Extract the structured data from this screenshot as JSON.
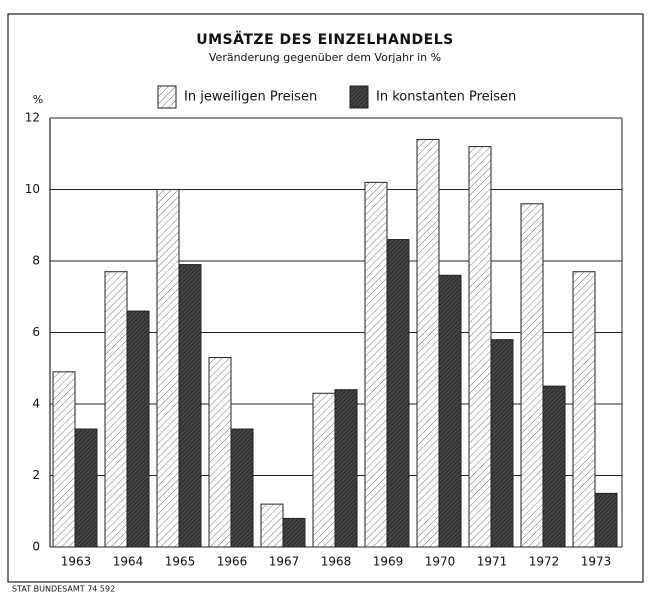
{
  "chart_data": {
    "type": "bar",
    "title": "UMSÄTZE DES EINZELHANDELS",
    "subtitle": "Veränderung gegenüber dem Vorjahr in %",
    "y_label": "%",
    "source": "STAT BUNDESAMT 74 592",
    "categories": [
      "1963",
      "1964",
      "1965",
      "1966",
      "1967",
      "1968",
      "1969",
      "1970",
      "1971",
      "1972",
      "1973"
    ],
    "series": [
      {
        "name": "In jeweiligen Preisen",
        "color": "#ffffff",
        "values": [
          4.9,
          7.7,
          10.0,
          5.3,
          1.2,
          4.3,
          10.2,
          11.4,
          11.2,
          9.6,
          7.7
        ]
      },
      {
        "name": "In konstanten Preisen",
        "color": "#333333",
        "values": [
          3.3,
          6.6,
          7.9,
          3.3,
          0.8,
          4.4,
          8.6,
          7.6,
          5.8,
          4.5,
          1.5
        ]
      }
    ],
    "ylim": [
      0,
      12
    ],
    "yticks": [
      0,
      2,
      4,
      6,
      8,
      10,
      12
    ],
    "grid": true
  }
}
